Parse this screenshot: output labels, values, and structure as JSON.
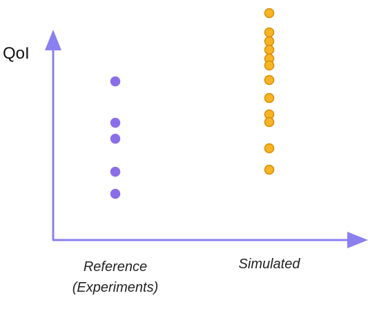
{
  "chart_data": {
    "type": "strip",
    "y_label": "QoI",
    "categories": [
      "Reference (Experiments)",
      "Simulated"
    ],
    "series": [
      {
        "name": "Reference (Experiments)",
        "color": "#8a6ee8",
        "stroke": "#8a6ee8",
        "category": 0,
        "values": [
          69.7,
          51.5,
          44.5,
          30,
          20.3
        ]
      },
      {
        "name": "Simulated",
        "color": "#f7b526",
        "stroke": "#d98c00",
        "category": 1,
        "values": [
          99.7,
          91.2,
          87.3,
          83.6,
          79.7,
          76.7,
          70.3,
          62.4,
          55.2,
          51.8,
          40.3,
          30.9
        ]
      }
    ],
    "ylim": [
      0,
      100
    ],
    "legend": false,
    "grid": false
  }
}
